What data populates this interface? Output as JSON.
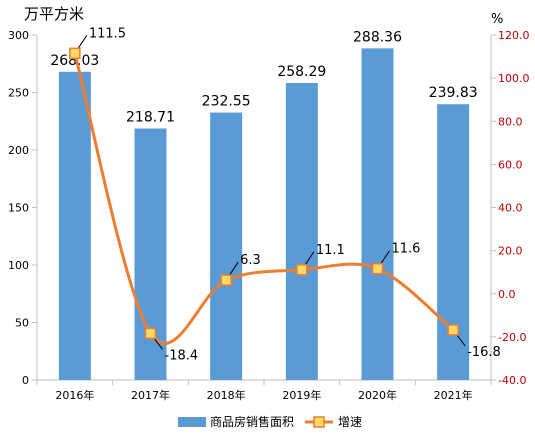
{
  "chart_data": {
    "type": "bar+line",
    "title": "",
    "categories": [
      "2016年",
      "2017年",
      "2018年",
      "2019年",
      "2020年",
      "2021年"
    ],
    "series": [
      {
        "name": "商品房销售面积",
        "type": "bar",
        "axis": "left",
        "values": [
          268.03,
          218.71,
          232.55,
          258.29,
          288.36,
          239.83
        ],
        "labels": [
          "268.03",
          "218.71",
          "232.55",
          "258.29",
          "288.36",
          "239.83"
        ],
        "color": "#5B9BD5"
      },
      {
        "name": "增速",
        "type": "line",
        "axis": "right",
        "smooth": true,
        "values": [
          111.5,
          -18.4,
          6.3,
          11.1,
          11.6,
          -16.8
        ],
        "labels": [
          "111.5",
          "-18.4",
          "6.3",
          "11.1",
          "11.6",
          "-16.8"
        ],
        "color": "#ED7D31",
        "marker_fill": "#FFD966"
      }
    ],
    "y_left": {
      "unit": "万平方米",
      "min": 0,
      "max": 300,
      "step": 50,
      "ticks": [
        "0",
        "50",
        "100",
        "150",
        "200",
        "250",
        "300"
      ]
    },
    "y_right": {
      "unit": "%",
      "min": -40,
      "max": 120,
      "step": 20,
      "ticks": [
        "-40.0",
        "-20.0",
        "0.0",
        "20.0",
        "40.0",
        "60.0",
        "80.0",
        "100.0",
        "120.0"
      ]
    },
    "grid": false,
    "legend": "bottom-center",
    "colors": {
      "axis": "#BFBFBF",
      "right_tick_text": "#C00000",
      "text": "#000000"
    }
  }
}
